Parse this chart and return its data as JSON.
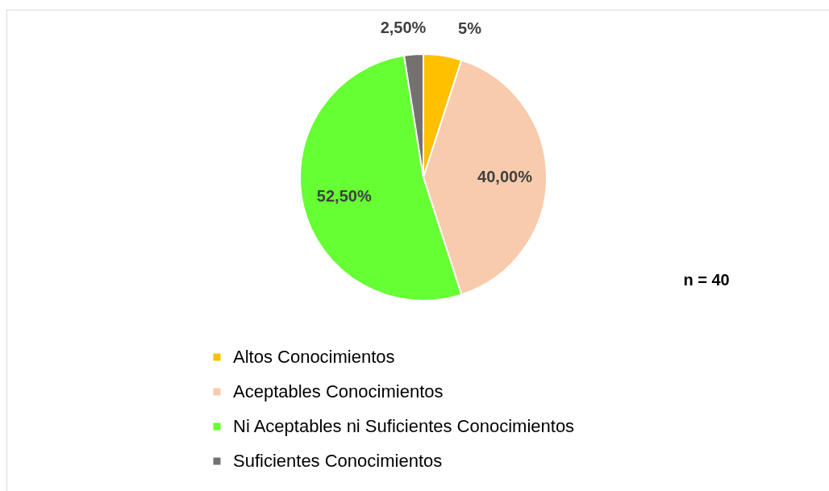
{
  "chart_data": {
    "type": "pie",
    "categories": [
      "Altos Conocimientos",
      "Aceptables Conocimientos",
      "Ni Aceptables ni Suficientes Conocimientos",
      "Suficientes Conocimientos"
    ],
    "values": [
      5,
      40,
      52.5,
      2.5
    ],
    "colors": [
      "#ffc000",
      "#f8cbad",
      "#66ff33",
      "#767171"
    ],
    "value_labels": [
      "5%",
      "40,00%",
      "52,50%",
      "2,50%"
    ],
    "annotations": [
      "n = 40"
    ],
    "legend": "bottom"
  }
}
